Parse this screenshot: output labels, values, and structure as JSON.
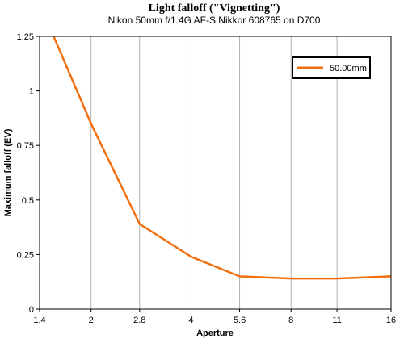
{
  "chart_data": {
    "type": "line",
    "title": "Light falloff (\"Vignetting\")",
    "subtitle": "Nikon 50mm f/1.4G AF-S Nikkor 608765 on D700",
    "xlabel": "Aperture",
    "ylabel": "Maximum falloff (EV)",
    "x_scale": "log2",
    "xlim": [
      1.4,
      16
    ],
    "ylim": [
      0,
      1.25
    ],
    "x_ticks": [
      1.4,
      2,
      2.8,
      4,
      5.6,
      8,
      11,
      16
    ],
    "x_tick_labels": [
      "1.4",
      "2",
      "2.8",
      "4",
      "5.6",
      "8",
      "11",
      "16"
    ],
    "y_ticks": [
      0,
      0.25,
      0.5,
      0.75,
      1,
      1.25
    ],
    "y_tick_labels": [
      "0",
      "0.25",
      "0.5",
      "0.75",
      "1",
      "1.25"
    ],
    "grid": "vertical",
    "legend_position": "top-right",
    "series": [
      {
        "name": "50.00mm",
        "color": "#f07010",
        "x": [
          1.4,
          2,
          2.8,
          4,
          5.6,
          8,
          11,
          16
        ],
        "values": [
          1.4,
          0.85,
          0.39,
          0.24,
          0.15,
          0.14,
          0.14,
          0.15
        ]
      }
    ]
  }
}
